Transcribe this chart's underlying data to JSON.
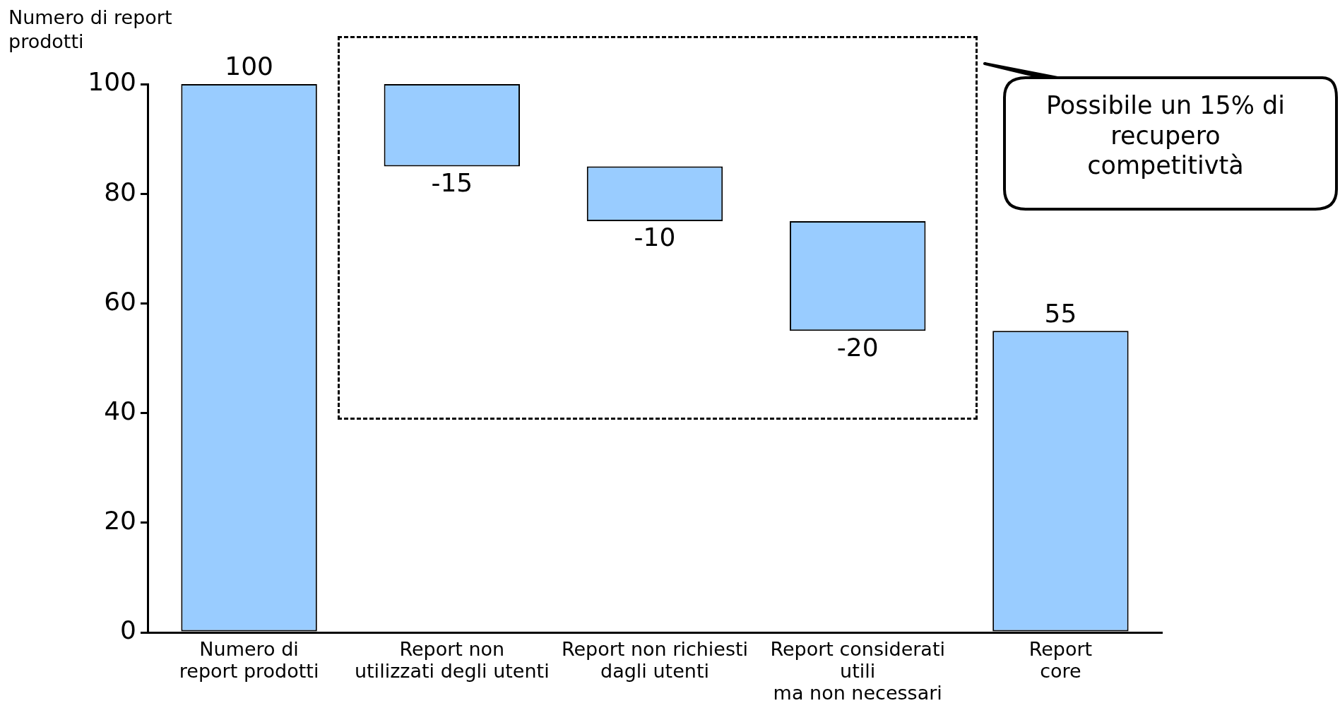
{
  "chart_data": {
    "type": "bar",
    "ylabel": "Numero di report\nprodotti",
    "categories": [
      "Numero di\nreport prodotti",
      "Report non\nutilizzati degli utenti",
      "Report non richiesti\ndagli utenti",
      "Report considerati\nutili\nma non necessari",
      "Report\ncore"
    ],
    "values": [
      100,
      -15,
      -10,
      -20,
      55
    ],
    "base": [
      0,
      100,
      85,
      75,
      0
    ],
    "color": "#99ccff",
    "ylim": [
      0,
      100
    ],
    "yticks": [
      0,
      20,
      40,
      60,
      80,
      100
    ],
    "grid": false,
    "legend": false,
    "data_labels": true,
    "annotations": [
      "Possibile un 15% di\nrecupero\ncompetitivtà"
    ]
  }
}
